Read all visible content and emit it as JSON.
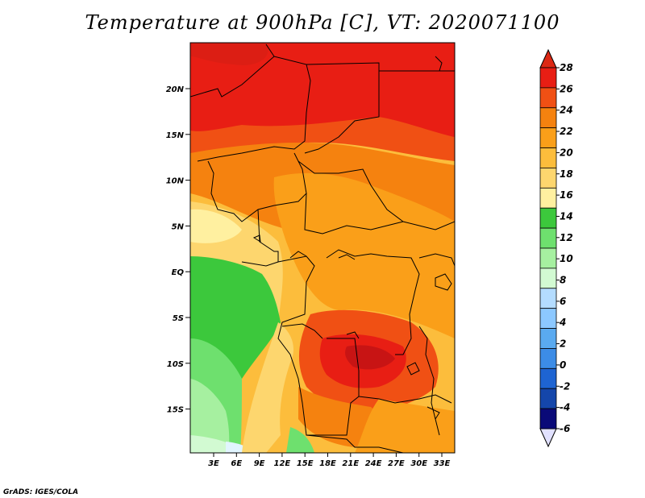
{
  "title": "Temperature at 900hPa [C], VT: 2020071100",
  "footer": "GrADS: IGES/COLA",
  "map": {
    "lat_ticks": [
      "20N",
      "15N",
      "10N",
      "5N",
      "EQ",
      "5S",
      "10S",
      "15S"
    ],
    "lon_ticks": [
      "3E",
      "6E",
      "9E",
      "12E",
      "15E",
      "18E",
      "21E",
      "24E",
      "27E",
      "30E",
      "33E"
    ]
  },
  "colorbar": {
    "labels": [
      "28",
      "26",
      "24",
      "22",
      "20",
      "18",
      "16",
      "14",
      "12",
      "10",
      "8",
      "6",
      "4",
      "2",
      "0",
      "-2",
      "-4",
      "-6"
    ],
    "top_arrow_color": "#dc2814",
    "bottom_arrow_color": "#e1e1ff",
    "colors": [
      "#e81e14",
      "#f05014",
      "#f5820f",
      "#fa9f19",
      "#fcbd3c",
      "#fdd66e",
      "#fff0a0",
      "#3cc83c",
      "#6ee06e",
      "#a6f0a0",
      "#d2fad2",
      "#b4dcff",
      "#8cc8ff",
      "#5aaaf0",
      "#3c8ce6",
      "#1e64d2",
      "#1446aa",
      "#0a0a78"
    ]
  }
}
